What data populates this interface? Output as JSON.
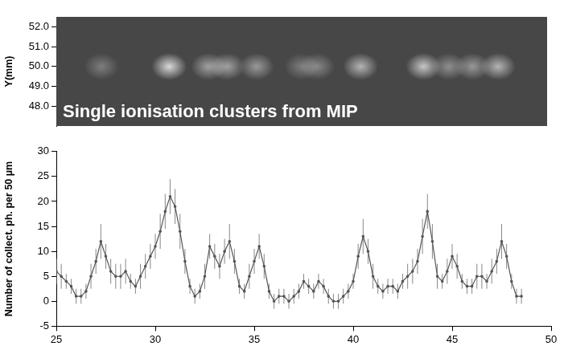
{
  "chart_data": [
    {
      "type": "image",
      "annotation": "Single ionisation clusters from MIP",
      "y_label": "Y(mm)",
      "xlim": [
        25,
        50
      ],
      "ylim": [
        47,
        52.5
      ],
      "yticks": [
        {
          "value": 48,
          "label": "48.0"
        },
        {
          "value": 49,
          "label": "49.0"
        },
        {
          "value": 50,
          "label": "50.0"
        },
        {
          "value": 51,
          "label": "51.0"
        },
        {
          "value": 52,
          "label": "52.0"
        }
      ],
      "tick_labels": "y",
      "grid": false,
      "color": "#ffffff",
      "clusters": {
        "x": [
          27.3,
          30.75,
          32.75,
          33.7,
          35.2,
          37.5,
          38.3,
          40.5,
          43.7,
          45.0,
          46.2,
          47.5
        ],
        "y": [
          50.0,
          50.0,
          50.0,
          50.0,
          50.0,
          50.0,
          50.0,
          50.0,
          50.0,
          50.0,
          50.0,
          50.0
        ],
        "brightness": [
          0.3,
          0.8,
          0.5,
          0.5,
          0.45,
          0.3,
          0.35,
          0.6,
          0.7,
          0.4,
          0.45,
          0.6
        ]
      }
    },
    {
      "type": "line",
      "y_label": "Number of collect. ph. per 50 µm",
      "color": "#555555",
      "xlim": [
        25,
        50
      ],
      "ylim": [
        -5,
        30
      ],
      "xticks": [
        25,
        30,
        35,
        40,
        45,
        50
      ],
      "yticks": [
        -5,
        0,
        5,
        10,
        15,
        20,
        25,
        30
      ],
      "grid": false,
      "x": [
        25,
        25.25,
        25.5,
        25.75,
        26,
        26.25,
        26.5,
        26.75,
        27,
        27.25,
        27.5,
        27.75,
        28,
        28.25,
        28.5,
        28.75,
        29,
        29.25,
        29.5,
        29.75,
        30,
        30.25,
        30.5,
        30.75,
        31,
        31.25,
        31.5,
        31.75,
        32,
        32.25,
        32.5,
        32.75,
        33,
        33.25,
        33.5,
        33.75,
        34,
        34.25,
        34.5,
        34.75,
        35,
        35.25,
        35.5,
        35.75,
        36,
        36.25,
        36.5,
        36.75,
        37,
        37.25,
        37.5,
        37.75,
        38,
        38.25,
        38.5,
        38.75,
        39,
        39.25,
        39.5,
        39.75,
        40,
        40.25,
        40.5,
        40.75,
        41,
        41.25,
        41.5,
        41.75,
        42,
        42.25,
        42.5,
        42.75,
        43,
        43.25,
        43.5,
        43.75,
        44,
        44.25,
        44.5,
        44.75,
        45,
        45.25,
        45.5,
        45.75,
        46,
        46.25,
        46.5,
        46.75,
        47,
        47.25,
        47.5,
        47.75,
        48,
        48.25,
        48.5
      ],
      "values": [
        6,
        5,
        4,
        3,
        1,
        1,
        2,
        5,
        8,
        12,
        9,
        6,
        5,
        5,
        6,
        4,
        3,
        5,
        7,
        9,
        11,
        14,
        18,
        21,
        19,
        14,
        8,
        3,
        1,
        2,
        5,
        11,
        9,
        7,
        10,
        12,
        8,
        3,
        2,
        5,
        8,
        11,
        7,
        2,
        0,
        1,
        1,
        0,
        1,
        2,
        4,
        3,
        2,
        4,
        3,
        1,
        0,
        0,
        1,
        2,
        4,
        9,
        13,
        10,
        5,
        3,
        2,
        3,
        3,
        2,
        4,
        5,
        6,
        8,
        13,
        18,
        12,
        5,
        4,
        6,
        9,
        7,
        4,
        3,
        3,
        5,
        5,
        4,
        6,
        8,
        12,
        9,
        4,
        1,
        1
      ],
      "errors": [
        2.5,
        2.5,
        1.5,
        1.5,
        1.5,
        1.5,
        1.5,
        2.5,
        2.5,
        3.5,
        2.5,
        2.5,
        2.5,
        2.5,
        2.5,
        1.5,
        1.5,
        2.5,
        2.5,
        2.5,
        2.5,
        3.5,
        3.5,
        3.5,
        3.5,
        3.5,
        2.5,
        1.5,
        1.5,
        1.5,
        2.5,
        2.5,
        2.5,
        2.5,
        2.5,
        3.5,
        2.5,
        1.5,
        1.5,
        2.5,
        2.5,
        2.5,
        2.5,
        1.5,
        1.5,
        1.5,
        1.5,
        1.5,
        1.5,
        1.5,
        1.5,
        1.5,
        1.5,
        1.5,
        1.5,
        1.5,
        1.5,
        1.5,
        1.5,
        1.5,
        1.5,
        2.5,
        3.5,
        2.5,
        2.5,
        1.5,
        1.5,
        1.5,
        1.5,
        1.5,
        1.5,
        2.5,
        2.5,
        2.5,
        3.5,
        3.5,
        3.5,
        2.5,
        1.5,
        2.5,
        2.5,
        2.5,
        1.5,
        1.5,
        1.5,
        2.5,
        2.5,
        1.5,
        2.5,
        2.5,
        3.5,
        2.5,
        1.5,
        1.5,
        1.5
      ]
    }
  ]
}
